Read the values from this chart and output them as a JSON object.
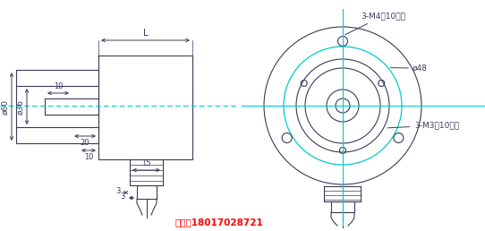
{
  "bg_color": "#ffffff",
  "line_color": "#3a3a5a",
  "cyan_color": "#00cccc",
  "red_color": "#ff0000",
  "phone_text": "手机：18017028721",
  "label_L": "L",
  "label_phi60": "ø60",
  "label_phi36": "ø36",
  "label_10a": "10",
  "label_20": "20",
  "label_10b": "10",
  "label_15": "15",
  "label_3a": "3",
  "label_3b": "3",
  "label_phi48": "ø48",
  "label_3M4": "3-M4深10均布",
  "label_3M3": "3-M3深10均布",
  "figsize": [
    5.42,
    2.58
  ],
  "dpi": 100
}
